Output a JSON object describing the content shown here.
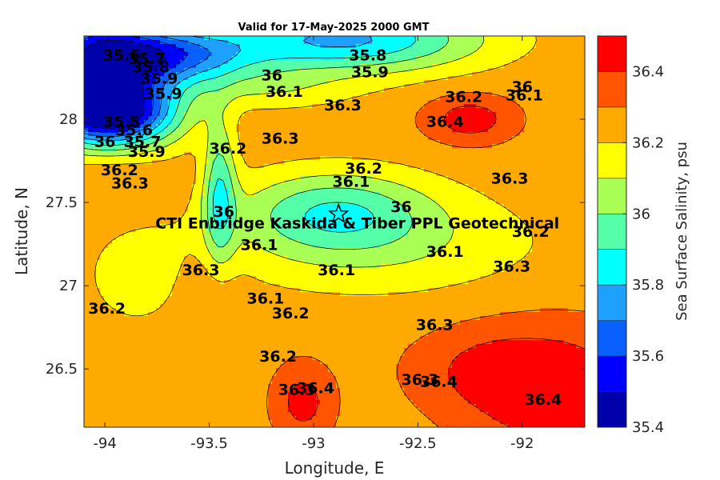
{
  "chart_data": {
    "type": "heatmap",
    "subtype": "filled-contour",
    "title": "Valid for 17-May-2025 2000 GMT",
    "xlabel": "Longitude, E",
    "ylabel": "Latitude, N",
    "xlim": [
      -94.1,
      -91.7
    ],
    "ylim": [
      26.15,
      28.5
    ],
    "xticks": [
      -94,
      -93.5,
      -93,
      -92.5,
      -92
    ],
    "xtick_labels": [
      "-94",
      "-93.5",
      "-93",
      "-92.5",
      "-92"
    ],
    "yticks": [
      26.5,
      27,
      27.5,
      28
    ],
    "ytick_labels": [
      "26.5",
      "27",
      "27.5",
      "28"
    ],
    "colorbar": {
      "label": "Sea Surface Salinity, psu",
      "range": [
        35.4,
        36.5
      ],
      "ticks": [
        35.4,
        35.6,
        35.8,
        36,
        36.2,
        36.4
      ],
      "tick_labels": [
        "35.4",
        "35.6",
        "35.8",
        "36",
        "36.2",
        "36.4"
      ],
      "levels": [
        35.4,
        35.5,
        35.6,
        35.7,
        35.8,
        35.9,
        36.0,
        36.1,
        36.2,
        36.3,
        36.4,
        36.5
      ],
      "colors": [
        "#0000aa",
        "#0000ff",
        "#0a5fff",
        "#1ea0ff",
        "#00ffff",
        "#55ffaa",
        "#aaff55",
        "#ffff00",
        "#ffaa00",
        "#ff5500",
        "#ff0000"
      ]
    },
    "contour_labels": [
      {
        "text": "35.6",
        "lon": -93.92,
        "lat": 28.38
      },
      {
        "text": "35.7",
        "lon": -93.8,
        "lat": 28.36
      },
      {
        "text": "35.8",
        "lon": -93.78,
        "lat": 28.31
      },
      {
        "text": "35.9",
        "lon": -93.74,
        "lat": 28.24
      },
      {
        "text": "35.9",
        "lon": -93.72,
        "lat": 28.15
      },
      {
        "text": "35.8",
        "lon": -92.74,
        "lat": 28.38
      },
      {
        "text": "35.9",
        "lon": -92.73,
        "lat": 28.28
      },
      {
        "text": "36",
        "lon": -93.2,
        "lat": 28.26
      },
      {
        "text": "36.1",
        "lon": -93.14,
        "lat": 28.16
      },
      {
        "text": "36.3",
        "lon": -92.86,
        "lat": 28.08
      },
      {
        "text": "36.2",
        "lon": -92.28,
        "lat": 28.13
      },
      {
        "text": "36",
        "lon": -92.0,
        "lat": 28.19
      },
      {
        "text": "36.1",
        "lon": -91.99,
        "lat": 28.14
      },
      {
        "text": "36.4",
        "lon": -92.37,
        "lat": 27.98
      },
      {
        "text": "35.5",
        "lon": -93.92,
        "lat": 27.98
      },
      {
        "text": "35.6",
        "lon": -93.86,
        "lat": 27.93
      },
      {
        "text": "35.7",
        "lon": -93.82,
        "lat": 27.86
      },
      {
        "text": "35.9",
        "lon": -93.8,
        "lat": 27.8
      },
      {
        "text": "36",
        "lon": -94.0,
        "lat": 27.86
      },
      {
        "text": "36.2",
        "lon": -93.41,
        "lat": 27.82
      },
      {
        "text": "36.3",
        "lon": -93.16,
        "lat": 27.88
      },
      {
        "text": "36.2",
        "lon": -92.76,
        "lat": 27.7
      },
      {
        "text": "36.1",
        "lon": -92.82,
        "lat": 27.62
      },
      {
        "text": "36.3",
        "lon": -92.06,
        "lat": 27.64
      },
      {
        "text": "36.2",
        "lon": -93.93,
        "lat": 27.69
      },
      {
        "text": "36.3",
        "lon": -93.88,
        "lat": 27.61
      },
      {
        "text": "36",
        "lon": -92.58,
        "lat": 27.47
      },
      {
        "text": "36",
        "lon": -93.43,
        "lat": 27.44
      },
      {
        "text": "36.1",
        "lon": -93.26,
        "lat": 27.24
      },
      {
        "text": "36.1",
        "lon": -92.37,
        "lat": 27.2
      },
      {
        "text": "36.2",
        "lon": -91.96,
        "lat": 27.32
      },
      {
        "text": "36.3",
        "lon": -92.05,
        "lat": 27.11
      },
      {
        "text": "36.1",
        "lon": -92.89,
        "lat": 27.09
      },
      {
        "text": "36.3",
        "lon": -93.54,
        "lat": 27.09
      },
      {
        "text": "36.1",
        "lon": -93.23,
        "lat": 26.92
      },
      {
        "text": "36.2",
        "lon": -93.11,
        "lat": 26.83
      },
      {
        "text": "36.2",
        "lon": -93.99,
        "lat": 26.86
      },
      {
        "text": "36.2",
        "lon": -93.17,
        "lat": 26.57
      },
      {
        "text": "36.3",
        "lon": -92.42,
        "lat": 26.76
      },
      {
        "text": "36.3",
        "lon": -93.08,
        "lat": 26.37
      },
      {
        "text": "36.4",
        "lon": -92.99,
        "lat": 26.38
      },
      {
        "text": "36.3",
        "lon": -92.49,
        "lat": 26.43
      },
      {
        "text": "36.4",
        "lon": -92.4,
        "lat": 26.42
      },
      {
        "text": "36.4",
        "lon": -91.9,
        "lat": 26.31
      }
    ],
    "annotations": [
      {
        "text": "CTI Enbridge  Kaskida & Tiber PPL Geotechnical",
        "lon": -92.79,
        "lat": 27.37
      }
    ],
    "markers": [
      {
        "shape": "star",
        "lon": -92.88,
        "lat": 27.43
      }
    ]
  }
}
